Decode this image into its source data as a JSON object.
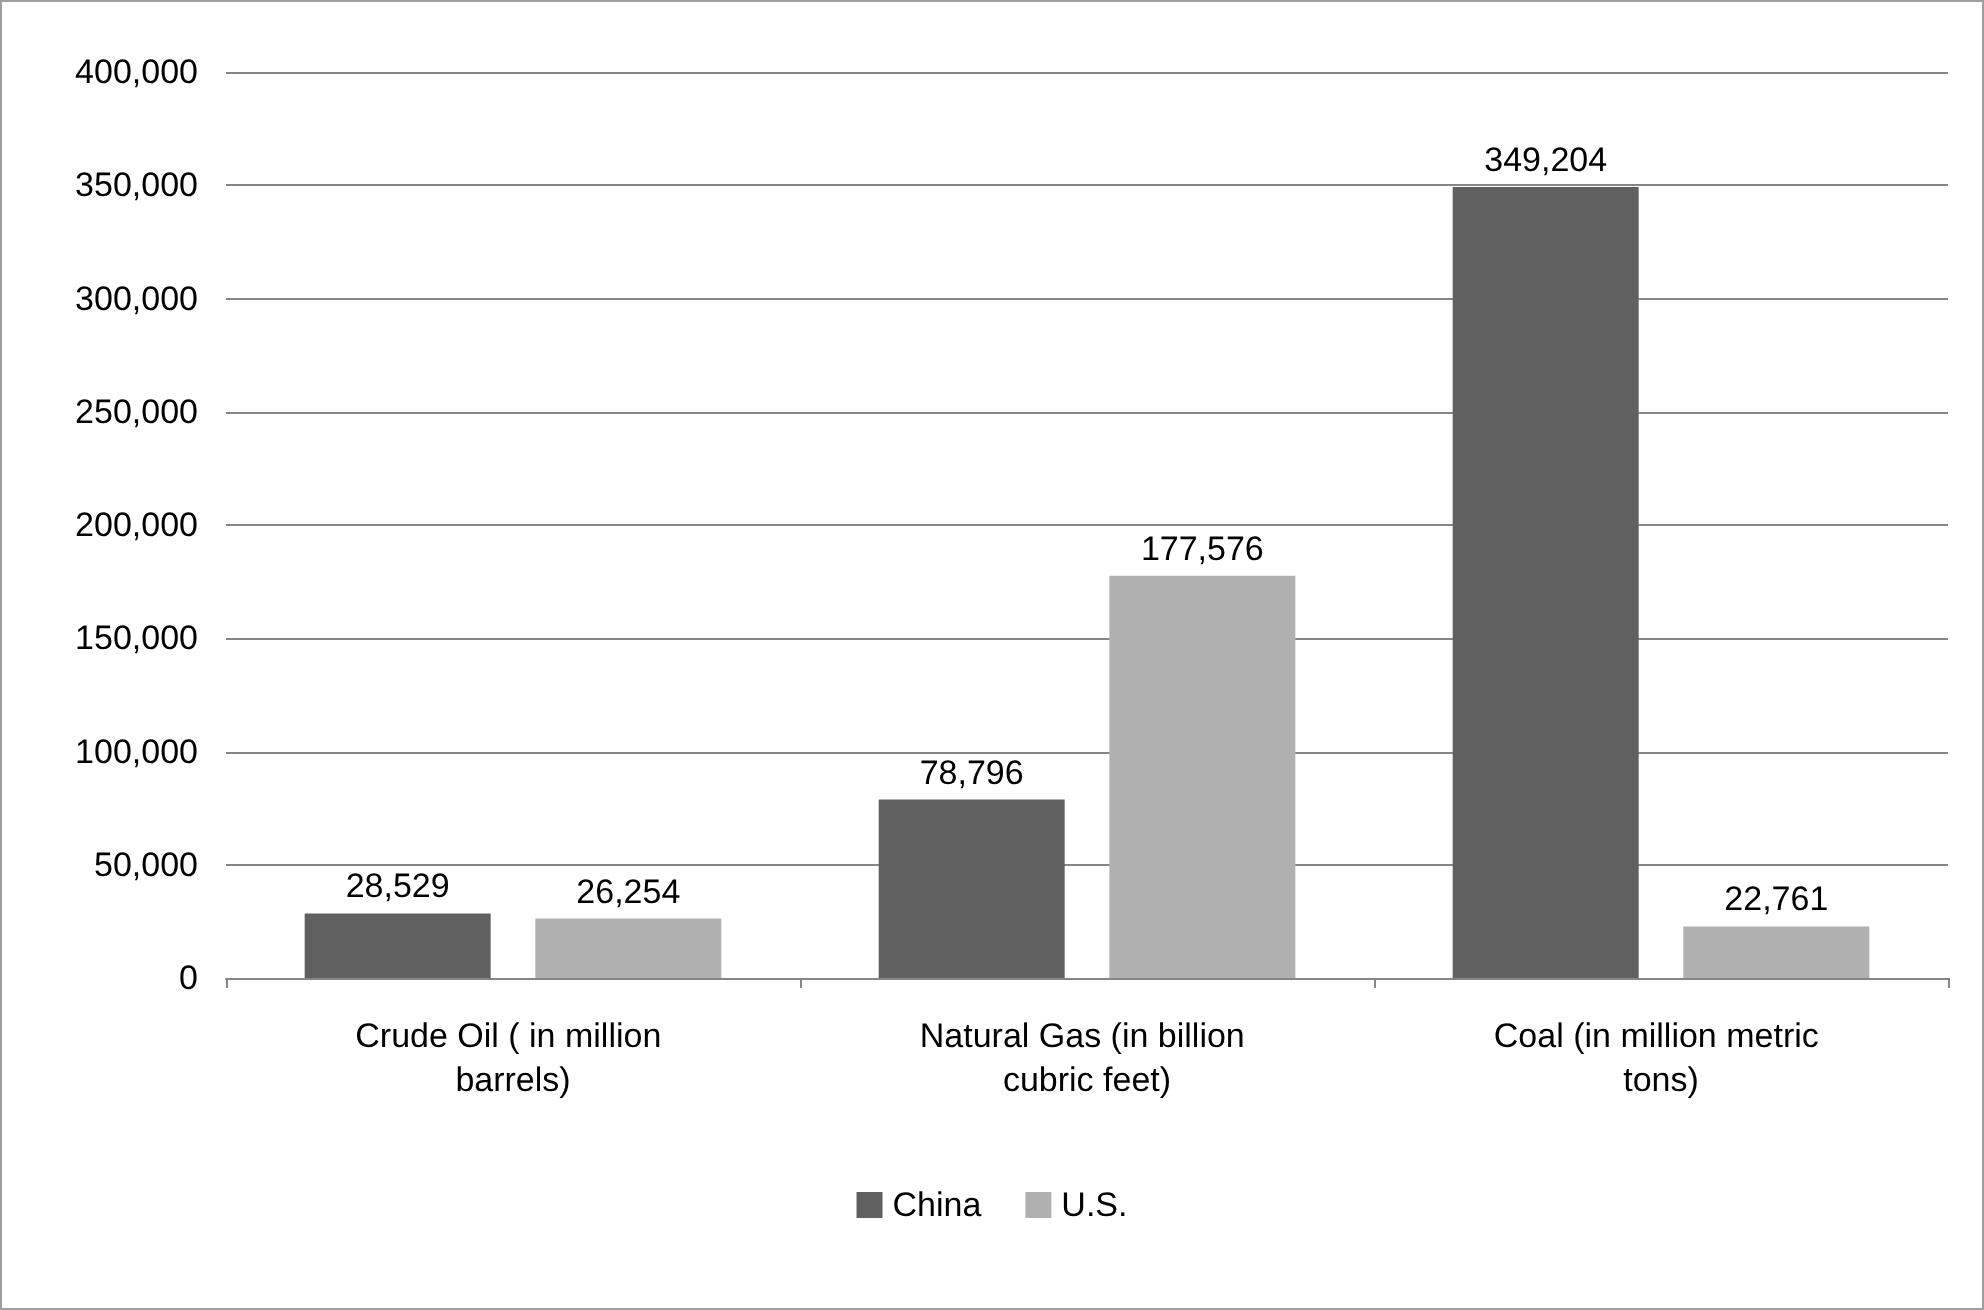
{
  "chart_data": {
    "type": "bar",
    "categories": [
      "Crude Oil ( in million barrels)",
      "Natural Gas (in billion cubric feet)",
      "Coal (in million metric tons)"
    ],
    "series": [
      {
        "name": "China",
        "color": "#606060",
        "values": [
          28529,
          78796,
          349204
        ]
      },
      {
        "name": "U.S.",
        "color": "#b0b0b0",
        "values": [
          26254,
          177576,
          22761
        ]
      }
    ],
    "ylim": [
      0,
      400000
    ],
    "yticks": [
      {
        "value": 0,
        "label": "0"
      },
      {
        "value": 50000,
        "label": "50,000"
      },
      {
        "value": 100000,
        "label": "100,000"
      },
      {
        "value": 150000,
        "label": "150,000"
      },
      {
        "value": 200000,
        "label": "200,000"
      },
      {
        "value": 250000,
        "label": "250,000"
      },
      {
        "value": 300000,
        "label": "300,000"
      },
      {
        "value": 350000,
        "label": "350,000"
      },
      {
        "value": 400000,
        "label": "400,000"
      }
    ],
    "value_labels": [
      [
        "28,529",
        "78,796",
        "349,204"
      ],
      [
        "26,254",
        "177,576",
        "22,761"
      ]
    ],
    "grid": "y",
    "legend": "bottom"
  }
}
